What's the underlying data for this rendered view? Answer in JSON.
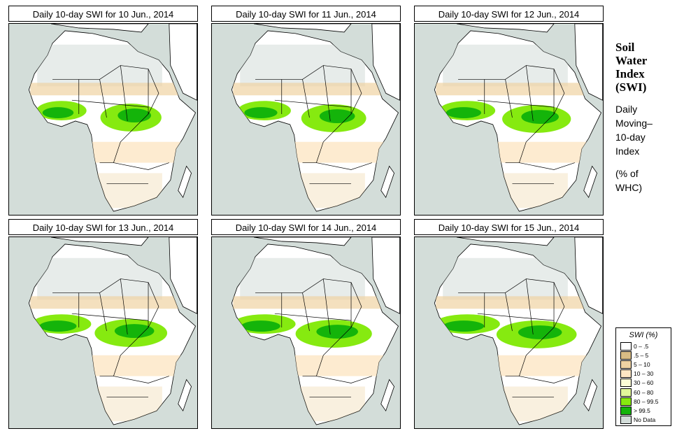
{
  "panels": [
    {
      "title": "Daily 10-day SWI for  10 Jun., 2014"
    },
    {
      "title": "Daily 10-day SWI for  11 Jun., 2014"
    },
    {
      "title": "Daily 10-day SWI for  12 Jun., 2014"
    },
    {
      "title": "Daily 10-day SWI for  13 Jun., 2014"
    },
    {
      "title": "Daily 10-day SWI for  14 Jun., 2014"
    },
    {
      "title": "Daily 10-day SWI for  15 Jun., 2014"
    }
  ],
  "side": {
    "heading": [
      "Soil",
      "Water",
      "Index",
      "(SWI)"
    ],
    "desc": [
      "Daily",
      "Moving–",
      "10-day",
      "Index"
    ],
    "unit": [
      "(% of",
      "WHC)"
    ]
  },
  "legend": {
    "title": "SWI (%)",
    "items": [
      {
        "label": "0 – .5",
        "color": "#ffffff"
      },
      {
        "label": ".5 – 5",
        "color": "#d9bd85"
      },
      {
        "label": "5 – 10",
        "color": "#efd3a3"
      },
      {
        "label": "10 – 30",
        "color": "#fde6c4"
      },
      {
        "label": "30 – 60",
        "color": "#fcfcd6"
      },
      {
        "label": "60 – 80",
        "color": "#e2f79a"
      },
      {
        "label": "80 – 99.5",
        "color": "#86ea10"
      },
      {
        "label": "> 99.5",
        "color": "#14b40a"
      },
      {
        "label": "No Data",
        "color": "#d3ddd9"
      }
    ]
  }
}
